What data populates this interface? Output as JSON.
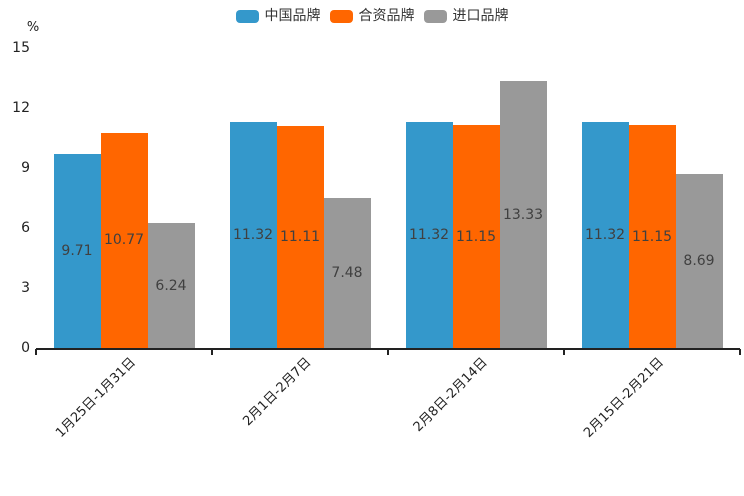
{
  "chart_data": {
    "type": "bar",
    "title": "",
    "xlabel": "",
    "ylabel": "",
    "unit_label": "%",
    "categories": [
      "1月25日-1月31日",
      "2月1日-2月7日",
      "2月8日-2月14日",
      "2月15日-2月21日"
    ],
    "series": [
      {
        "name": "中国品牌",
        "color": "#3498cb",
        "values": [
          9.71,
          11.32,
          11.32,
          11.32
        ]
      },
      {
        "name": "合资品牌",
        "color": "#ff6600",
        "values": [
          10.77,
          11.11,
          11.15,
          11.15
        ]
      },
      {
        "name": "进口品牌",
        "color": "#999999",
        "values": [
          6.24,
          7.48,
          13.33,
          8.69
        ]
      }
    ],
    "y_axis": {
      "ticks": [
        0,
        3,
        6,
        9,
        12,
        15
      ],
      "min": 0,
      "max": 15
    },
    "ylim": [
      0,
      15
    ],
    "grid": false,
    "legend_position": "top",
    "value_labels": "inside-middle",
    "colors": {
      "axis": "#222222",
      "value_text": "#404040",
      "legend_text": "#333333"
    }
  }
}
